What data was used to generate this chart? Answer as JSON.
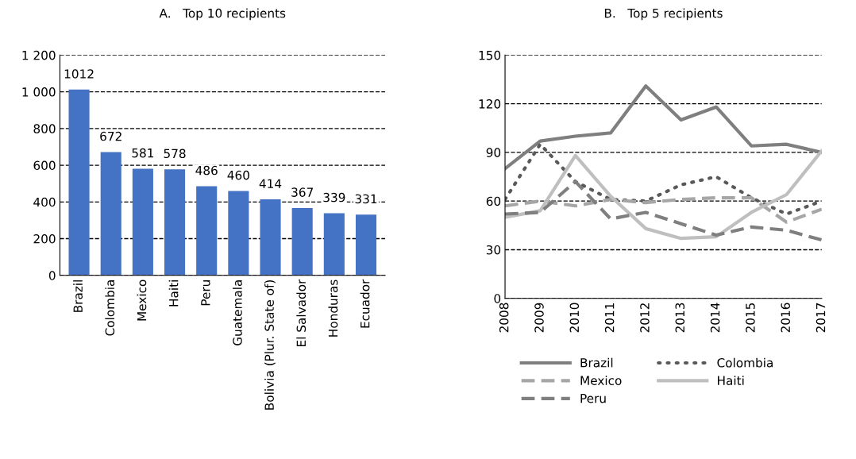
{
  "chart_data": [
    {
      "type": "bar",
      "title": "A.   Top 10 recipients",
      "categories": [
        "Brazil",
        "Colombia",
        "Mexico",
        "Haiti",
        "Peru",
        "Guatemala",
        "Bolivia (Plur. State of)",
        "El Salvador",
        "Honduras",
        "Ecuador"
      ],
      "values": [
        1012,
        672,
        581,
        578,
        486,
        460,
        414,
        367,
        339,
        331
      ],
      "color": "#4472c4",
      "data_labels": true,
      "grid": "y",
      "ylim": [
        0,
        1200
      ],
      "yticks": [
        0,
        200,
        400,
        600,
        800,
        {
          "value": 1000,
          "label": "1 000"
        },
        {
          "value": 1200,
          "label": "1 200"
        }
      ]
    },
    {
      "type": "line",
      "title": "B.   Top 5 recipients",
      "categories": [
        "2008",
        "2009",
        "2010",
        "2011",
        "2012",
        "2013",
        "2014",
        "2015",
        "2016",
        "2017"
      ],
      "series": [
        {
          "name": "Brazil",
          "color": "#7f7f7f",
          "line_style": "solid",
          "values": [
            80,
            97,
            100,
            102,
            131,
            110,
            118,
            94,
            95,
            90
          ]
        },
        {
          "name": "Colombia",
          "color": "#595959",
          "line_style": "dotted",
          "values": [
            61,
            95,
            72,
            61,
            60,
            70,
            75,
            62,
            52,
            60
          ]
        },
        {
          "name": "Mexico",
          "color": "#a6a6a6",
          "line_style": "dashed",
          "values": [
            57,
            60,
            57,
            61,
            59,
            61,
            62,
            62,
            47,
            55
          ]
        },
        {
          "name": "Haiti",
          "color": "#bfbfbf",
          "line_style": "solid",
          "values": [
            50,
            54,
            88,
            63,
            43,
            37,
            38,
            53,
            64,
            91
          ]
        },
        {
          "name": "Peru",
          "color": "#7f7f7f",
          "line_style": "dashed",
          "values": [
            52,
            53,
            72,
            49,
            53,
            46,
            39,
            44,
            42,
            36
          ]
        }
      ],
      "grid": "y",
      "legend": "bottom",
      "ylim": [
        0,
        150
      ],
      "yticks": [
        0,
        30,
        60,
        90,
        120,
        150
      ]
    }
  ]
}
